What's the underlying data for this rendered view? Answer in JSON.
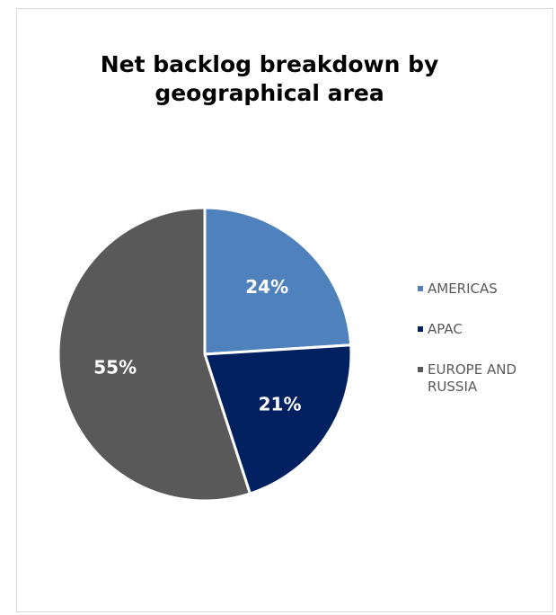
{
  "chart_data": {
    "type": "pie",
    "title": "Net backlog breakdown by geographical area",
    "slices": [
      {
        "name": "AMERICAS",
        "value": 24,
        "label": "24%",
        "color": "#4f81bd"
      },
      {
        "name": "APAC",
        "value": 21,
        "label": "21%",
        "color": "#002060"
      },
      {
        "name": "EUROPE AND RUSSIA",
        "value": 55,
        "label": "55%",
        "color": "#595959"
      }
    ],
    "legend_position": "right"
  }
}
